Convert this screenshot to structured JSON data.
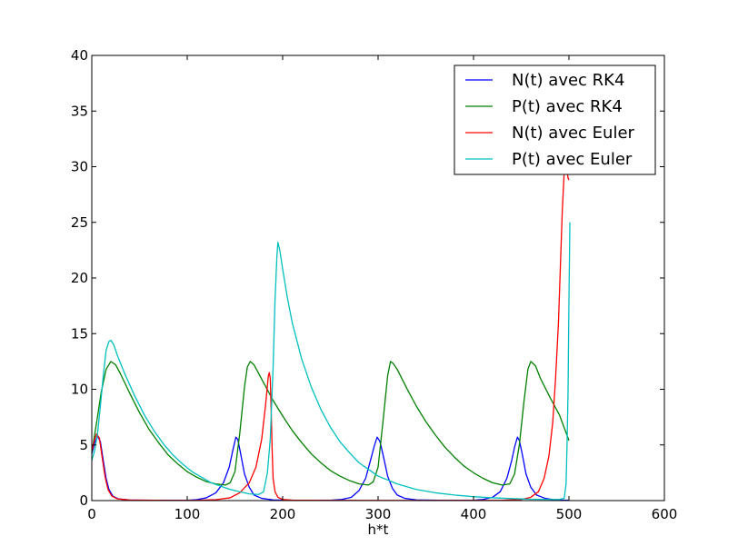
{
  "chart_data": {
    "type": "line",
    "title": "",
    "xlabel": "h*t",
    "ylabel": "",
    "xlim": [
      0,
      600
    ],
    "ylim": [
      0,
      40
    ],
    "xticks": [
      0,
      100,
      200,
      300,
      400,
      500,
      600
    ],
    "yticks": [
      0,
      5,
      10,
      15,
      20,
      25,
      30,
      35,
      40
    ],
    "grid": false,
    "legend_position": "top-right",
    "series": [
      {
        "name": "N(t) avec RK4",
        "color": "#0000ff",
        "points": [
          [
            0,
            4.2
          ],
          [
            3,
            5.2
          ],
          [
            6,
            5.8
          ],
          [
            9,
            5.3
          ],
          [
            12,
            3.6
          ],
          [
            15,
            2.0
          ],
          [
            18,
            1.0
          ],
          [
            22,
            0.4
          ],
          [
            28,
            0.15
          ],
          [
            40,
            0.05
          ],
          [
            70,
            0.02
          ],
          [
            100,
            0.03
          ],
          [
            110,
            0.08
          ],
          [
            120,
            0.25
          ],
          [
            130,
            0.7
          ],
          [
            138,
            1.6
          ],
          [
            144,
            3.0
          ],
          [
            148,
            4.6
          ],
          [
            151,
            5.7
          ],
          [
            153,
            5.5
          ],
          [
            156,
            4.2
          ],
          [
            160,
            2.4
          ],
          [
            165,
            1.2
          ],
          [
            170,
            0.5
          ],
          [
            178,
            0.2
          ],
          [
            190,
            0.06
          ],
          [
            220,
            0.02
          ],
          [
            250,
            0.03
          ],
          [
            262,
            0.1
          ],
          [
            272,
            0.3
          ],
          [
            280,
            0.9
          ],
          [
            287,
            2.0
          ],
          [
            292,
            3.6
          ],
          [
            296,
            4.9
          ],
          [
            299,
            5.7
          ],
          [
            302,
            5.3
          ],
          [
            306,
            3.8
          ],
          [
            310,
            2.2
          ],
          [
            315,
            1.1
          ],
          [
            320,
            0.5
          ],
          [
            328,
            0.2
          ],
          [
            340,
            0.06
          ],
          [
            370,
            0.02
          ],
          [
            400,
            0.03
          ],
          [
            410,
            0.1
          ],
          [
            420,
            0.3
          ],
          [
            428,
            0.8
          ],
          [
            435,
            2.0
          ],
          [
            440,
            3.6
          ],
          [
            443,
            4.8
          ],
          [
            446,
            5.7
          ],
          [
            448,
            5.4
          ],
          [
            451,
            4.2
          ],
          [
            455,
            2.4
          ],
          [
            460,
            1.2
          ],
          [
            466,
            0.5
          ],
          [
            475,
            0.2
          ],
          [
            485,
            0.06
          ],
          [
            500,
            0.03
          ]
        ]
      },
      {
        "name": "P(t) avec RK4",
        "color": "#008000",
        "points": [
          [
            0,
            4.3
          ],
          [
            5,
            7.0
          ],
          [
            10,
            9.8
          ],
          [
            15,
            11.8
          ],
          [
            20,
            12.5
          ],
          [
            25,
            12.2
          ],
          [
            30,
            11.4
          ],
          [
            40,
            9.6
          ],
          [
            50,
            7.9
          ],
          [
            60,
            6.4
          ],
          [
            70,
            5.2
          ],
          [
            80,
            4.1
          ],
          [
            90,
            3.3
          ],
          [
            100,
            2.6
          ],
          [
            110,
            2.1
          ],
          [
            120,
            1.7
          ],
          [
            130,
            1.5
          ],
          [
            140,
            1.4
          ],
          [
            145,
            1.6
          ],
          [
            150,
            2.6
          ],
          [
            155,
            6.0
          ],
          [
            160,
            10.2
          ],
          [
            163,
            12.0
          ],
          [
            166,
            12.5
          ],
          [
            170,
            12.2
          ],
          [
            180,
            10.6
          ],
          [
            190,
            9.0
          ],
          [
            200,
            7.6
          ],
          [
            210,
            6.3
          ],
          [
            220,
            5.2
          ],
          [
            230,
            4.2
          ],
          [
            240,
            3.4
          ],
          [
            250,
            2.7
          ],
          [
            260,
            2.2
          ],
          [
            270,
            1.8
          ],
          [
            280,
            1.5
          ],
          [
            290,
            1.4
          ],
          [
            295,
            1.7
          ],
          [
            300,
            3.0
          ],
          [
            305,
            7.0
          ],
          [
            310,
            11.2
          ],
          [
            313,
            12.5
          ],
          [
            316,
            12.3
          ],
          [
            320,
            11.8
          ],
          [
            330,
            10.1
          ],
          [
            340,
            8.5
          ],
          [
            350,
            7.1
          ],
          [
            360,
            5.9
          ],
          [
            370,
            4.8
          ],
          [
            380,
            3.9
          ],
          [
            390,
            3.1
          ],
          [
            400,
            2.5
          ],
          [
            410,
            2.0
          ],
          [
            420,
            1.6
          ],
          [
            430,
            1.4
          ],
          [
            438,
            1.5
          ],
          [
            443,
            2.4
          ],
          [
            448,
            5.0
          ],
          [
            453,
            9.0
          ],
          [
            457,
            11.8
          ],
          [
            460,
            12.5
          ],
          [
            465,
            12.1
          ],
          [
            470,
            11.0
          ],
          [
            480,
            9.3
          ],
          [
            490,
            7.7
          ],
          [
            500,
            5.4
          ]
        ]
      },
      {
        "name": "N(t) avec Euler",
        "color": "#ff0000",
        "points": [
          [
            0,
            4.5
          ],
          [
            3,
            5.5
          ],
          [
            5,
            6.0
          ],
          [
            8,
            5.6
          ],
          [
            11,
            3.8
          ],
          [
            14,
            2.1
          ],
          [
            17,
            1.0
          ],
          [
            21,
            0.4
          ],
          [
            27,
            0.15
          ],
          [
            40,
            0.05
          ],
          [
            80,
            0.02
          ],
          [
            110,
            0.03
          ],
          [
            130,
            0.08
          ],
          [
            145,
            0.25
          ],
          [
            155,
            0.7
          ],
          [
            165,
            1.6
          ],
          [
            172,
            3.0
          ],
          [
            178,
            5.5
          ],
          [
            182,
            8.5
          ],
          [
            185,
            11.2
          ],
          [
            186,
            11.5
          ],
          [
            187,
            11.0
          ],
          [
            188,
            8.0
          ],
          [
            189,
            4.5
          ],
          [
            190,
            2.0
          ],
          [
            192,
            0.8
          ],
          [
            195,
            0.3
          ],
          [
            200,
            0.1
          ],
          [
            210,
            0.04
          ],
          [
            250,
            0.02
          ],
          [
            350,
            0.01
          ],
          [
            430,
            0.03
          ],
          [
            450,
            0.1
          ],
          [
            460,
            0.3
          ],
          [
            468,
            0.8
          ],
          [
            474,
            2.0
          ],
          [
            479,
            4.0
          ],
          [
            483,
            7.0
          ],
          [
            486,
            11.0
          ],
          [
            489,
            16.0
          ],
          [
            491,
            21.0
          ],
          [
            493,
            26.0
          ],
          [
            495,
            29.5
          ],
          [
            497,
            30.5
          ],
          [
            499,
            29.0
          ],
          [
            500,
            28.8
          ]
        ]
      },
      {
        "name": "P(t) avec Euler",
        "color": "#00bfbf",
        "points": [
          [
            0,
            3.6
          ],
          [
            3,
            4.5
          ],
          [
            6,
            6.0
          ],
          [
            9,
            8.5
          ],
          [
            12,
            11.2
          ],
          [
            15,
            13.5
          ],
          [
            18,
            14.3
          ],
          [
            20,
            14.4
          ],
          [
            23,
            14.0
          ],
          [
            27,
            13.0
          ],
          [
            35,
            11.3
          ],
          [
            45,
            9.4
          ],
          [
            55,
            7.7
          ],
          [
            65,
            6.3
          ],
          [
            75,
            5.1
          ],
          [
            85,
            4.1
          ],
          [
            95,
            3.3
          ],
          [
            105,
            2.6
          ],
          [
            115,
            2.1
          ],
          [
            125,
            1.6
          ],
          [
            135,
            1.3
          ],
          [
            145,
            1.0
          ],
          [
            155,
            0.8
          ],
          [
            165,
            0.6
          ],
          [
            175,
            0.55
          ],
          [
            180,
            0.8
          ],
          [
            184,
            2.5
          ],
          [
            187,
            5.5
          ],
          [
            190,
            12.0
          ],
          [
            192,
            18.0
          ],
          [
            194,
            22.0
          ],
          [
            195,
            23.2
          ],
          [
            197,
            22.5
          ],
          [
            200,
            20.8
          ],
          [
            205,
            18.2
          ],
          [
            210,
            16.0
          ],
          [
            220,
            12.7
          ],
          [
            230,
            10.2
          ],
          [
            240,
            8.2
          ],
          [
            250,
            6.6
          ],
          [
            260,
            5.3
          ],
          [
            270,
            4.3
          ],
          [
            280,
            3.4
          ],
          [
            290,
            2.8
          ],
          [
            300,
            2.2
          ],
          [
            320,
            1.5
          ],
          [
            340,
            1.0
          ],
          [
            360,
            0.7
          ],
          [
            380,
            0.5
          ],
          [
            400,
            0.35
          ],
          [
            420,
            0.25
          ],
          [
            440,
            0.18
          ],
          [
            460,
            0.12
          ],
          [
            480,
            0.1
          ],
          [
            490,
            0.1
          ],
          [
            495,
            0.2
          ],
          [
            497,
            1.5
          ],
          [
            498,
            5.0
          ],
          [
            499,
            9.5
          ],
          [
            500,
            18.0
          ],
          [
            501,
            25.0
          ]
        ]
      }
    ]
  }
}
